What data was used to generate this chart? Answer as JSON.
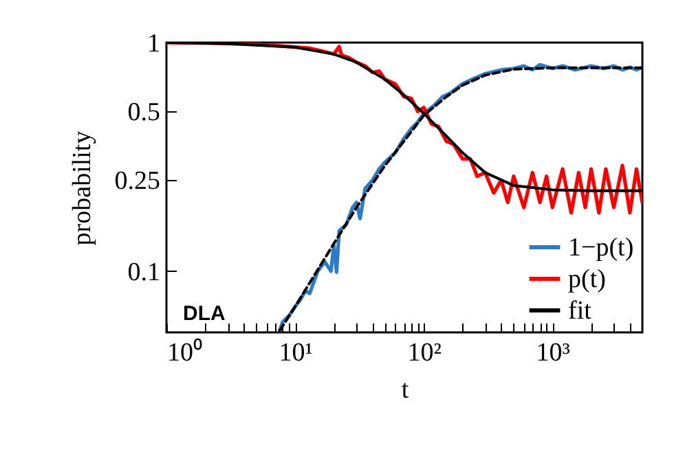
{
  "chart_data": {
    "type": "line",
    "xlabel": "t",
    "ylabel": "probability",
    "log": "xy",
    "grid": false,
    "legend": "bottom right",
    "annotations": [
      "DLA"
    ],
    "xlim": [
      1,
      5000
    ],
    "ylim": [
      0.054,
      1
    ],
    "xticks": [
      {
        "value": 1,
        "label": "10⁰"
      },
      {
        "value": 2,
        "label": null
      },
      {
        "value": 3,
        "label": null
      },
      {
        "value": 4,
        "label": null
      },
      {
        "value": 5,
        "label": null
      },
      {
        "value": 6,
        "label": null
      },
      {
        "value": 7,
        "label": null
      },
      {
        "value": 8,
        "label": null
      },
      {
        "value": 9,
        "label": null
      },
      {
        "value": 10,
        "label": "10¹"
      },
      {
        "value": 20,
        "label": null
      },
      {
        "value": 30,
        "label": null
      },
      {
        "value": 40,
        "label": null
      },
      {
        "value": 50,
        "label": null
      },
      {
        "value": 60,
        "label": null
      },
      {
        "value": 70,
        "label": null
      },
      {
        "value": 80,
        "label": null
      },
      {
        "value": 90,
        "label": null
      },
      {
        "value": 100,
        "label": "10²"
      },
      {
        "value": 200,
        "label": null
      },
      {
        "value": 300,
        "label": null
      },
      {
        "value": 400,
        "label": null
      },
      {
        "value": 500,
        "label": null
      },
      {
        "value": 600,
        "label": null
      },
      {
        "value": 700,
        "label": null
      },
      {
        "value": 800,
        "label": null
      },
      {
        "value": 900,
        "label": null
      },
      {
        "value": 1000,
        "label": "10³"
      },
      {
        "value": 2000,
        "label": null
      },
      {
        "value": 3000,
        "label": null
      },
      {
        "value": 4000,
        "label": null
      }
    ],
    "yticks": [
      0.1,
      0.25,
      0.5,
      1
    ],
    "series": [
      {
        "name": "1−p(t)",
        "color": "#2b7bcb",
        "line_style": "solid",
        "x": [
          7.6,
          8,
          9,
          10,
          11,
          12,
          13,
          14,
          15,
          17,
          19,
          20,
          21,
          22,
          25,
          28,
          30,
          32,
          35,
          40,
          45,
          50,
          60,
          70,
          80,
          90,
          100,
          120,
          140,
          160,
          200,
          250,
          300,
          400,
          500,
          600,
          700,
          800,
          1000,
          1200,
          1500,
          2000,
          2500,
          3000,
          3500,
          4000,
          4500,
          5000
        ],
        "values": [
          0.055,
          0.06,
          0.064,
          0.07,
          0.075,
          0.082,
          0.08,
          0.09,
          0.1,
          0.11,
          0.1,
          0.13,
          0.099,
          0.15,
          0.16,
          0.19,
          0.2,
          0.17,
          0.23,
          0.25,
          0.28,
          0.3,
          0.33,
          0.38,
          0.42,
          0.45,
          0.49,
          0.53,
          0.58,
          0.6,
          0.66,
          0.7,
          0.73,
          0.76,
          0.77,
          0.79,
          0.76,
          0.8,
          0.77,
          0.79,
          0.76,
          0.79,
          0.77,
          0.79,
          0.76,
          0.78,
          0.76,
          0.78
        ]
      },
      {
        "name": "p(t)",
        "color": "#ff0000",
        "line_style": "solid",
        "x": [
          1,
          1.5,
          2,
          3,
          4,
          5,
          7,
          10,
          13,
          16,
          20,
          22,
          23,
          26,
          30,
          35,
          40,
          45,
          50,
          60,
          70,
          80,
          90,
          100,
          115,
          130,
          150,
          170,
          200,
          230,
          260,
          300,
          350,
          400,
          450,
          500,
          600,
          700,
          800,
          900,
          1000,
          1200,
          1400,
          1600,
          1800,
          2000,
          2300,
          2600,
          3000,
          3500,
          4000,
          4500,
          5000
        ],
        "values": [
          1,
          0.998,
          0.995,
          0.99,
          0.985,
          0.98,
          0.97,
          0.955,
          0.945,
          0.92,
          0.89,
          0.96,
          0.88,
          0.86,
          0.82,
          0.79,
          0.74,
          0.75,
          0.69,
          0.66,
          0.58,
          0.57,
          0.5,
          0.52,
          0.44,
          0.43,
          0.37,
          0.36,
          0.31,
          0.31,
          0.26,
          0.27,
          0.22,
          0.25,
          0.2,
          0.26,
          0.19,
          0.27,
          0.2,
          0.26,
          0.19,
          0.28,
          0.18,
          0.27,
          0.19,
          0.28,
          0.18,
          0.28,
          0.19,
          0.29,
          0.18,
          0.28,
          0.2
        ]
      },
      {
        "name": "fit",
        "color": "#000000",
        "line_style": "solid",
        "x": [
          1,
          3,
          10,
          20,
          30,
          50,
          70,
          100,
          150,
          200,
          300,
          500,
          1000,
          2000,
          5000
        ],
        "values": [
          1,
          0.99,
          0.955,
          0.89,
          0.82,
          0.69,
          0.59,
          0.49,
          0.39,
          0.33,
          0.27,
          0.237,
          0.227,
          0.225,
          0.225
        ]
      },
      {
        "color": "#000000",
        "line_style": "dashed",
        "x": [
          7.6,
          10,
          20,
          30,
          50,
          70,
          100,
          150,
          200,
          300,
          500,
          1000,
          5000
        ],
        "values": [
          0.055,
          0.07,
          0.132,
          0.19,
          0.29,
          0.37,
          0.48,
          0.58,
          0.65,
          0.72,
          0.765,
          0.775,
          0.775
        ]
      }
    ]
  }
}
